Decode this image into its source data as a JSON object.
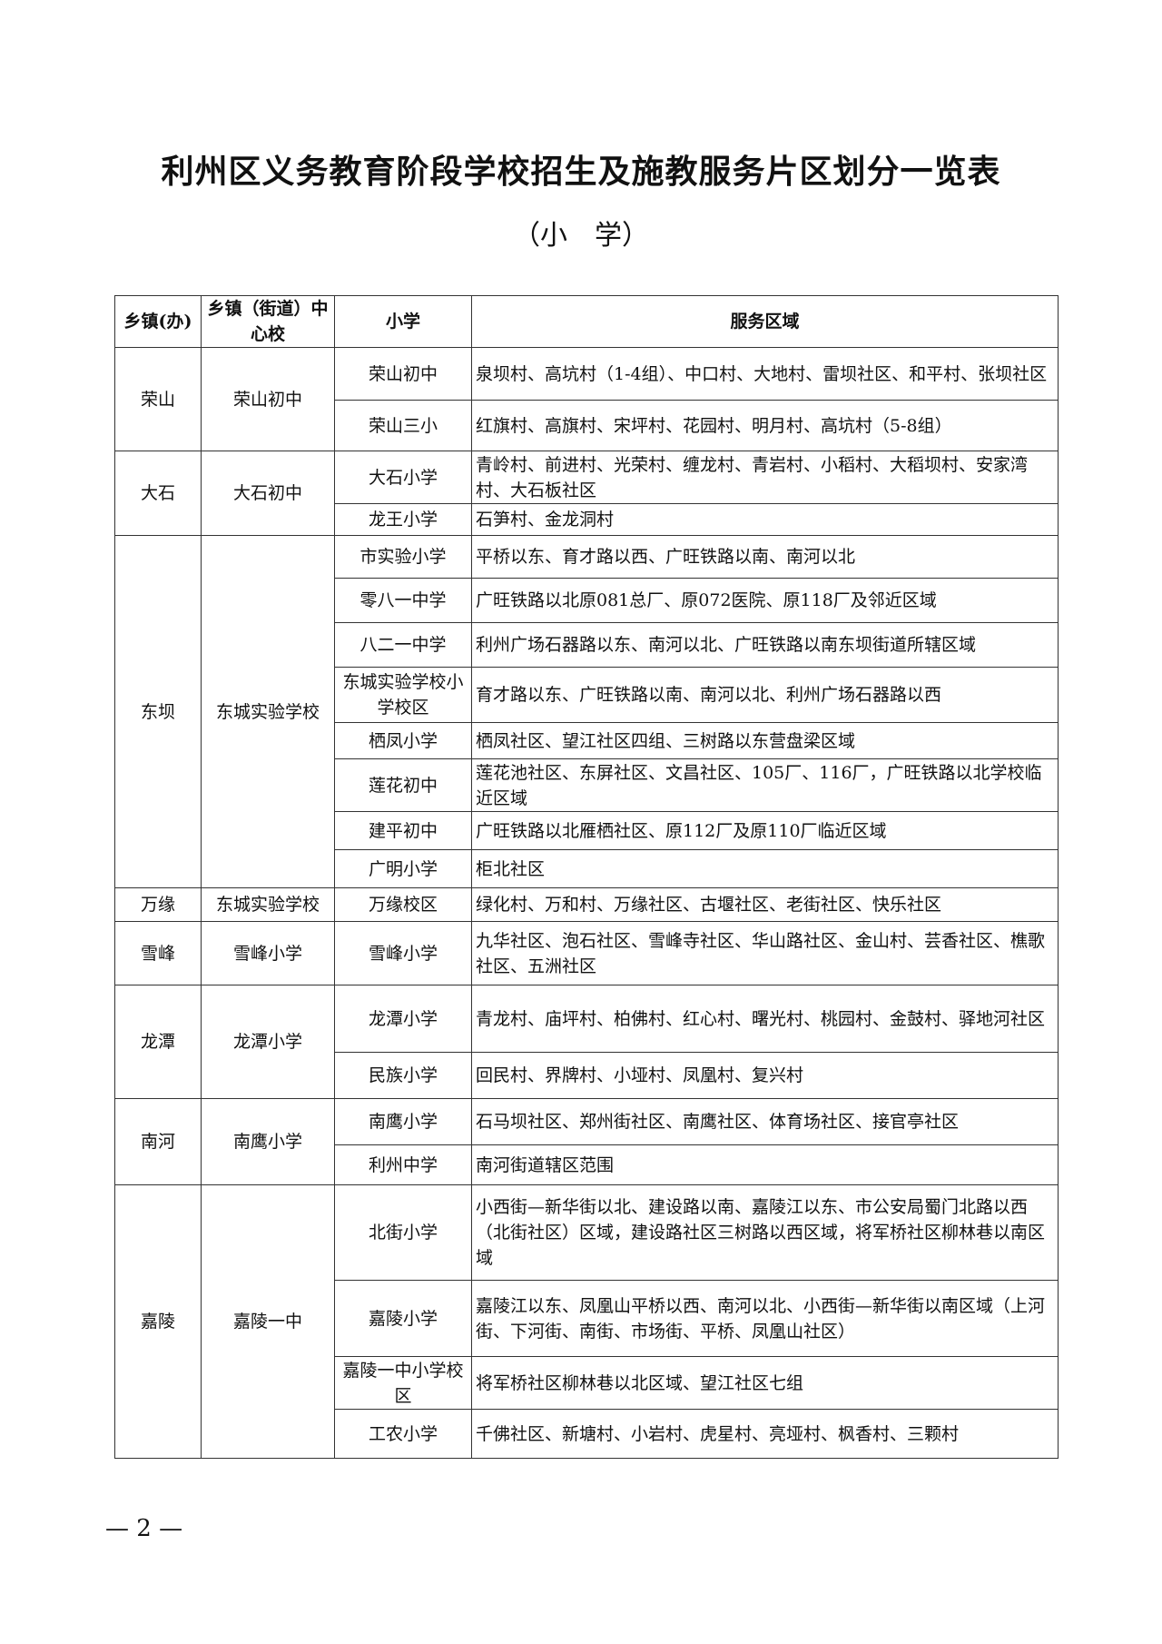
{
  "title": "利州区义务教育阶段学校招生及施教服务片区划分一览表",
  "subtitle": "（小　学）",
  "table": {
    "headers": [
      "乡镇(办)",
      "乡镇（街道）中心校",
      "小学",
      "服务区域"
    ],
    "groups": [
      {
        "town": "荣山",
        "center": "荣山初中",
        "schools": [
          {
            "name": "荣山初中",
            "area": "泉坝村、高坑村（1-4组）、中口村、大地村、雷坝社区、和平村、张坝社区"
          },
          {
            "name": "荣山三小",
            "area": "红旗村、高旗村、宋坪村、花园村、明月村、高坑村（5-8组）"
          }
        ]
      },
      {
        "town": "大石",
        "center": "大石初中",
        "schools": [
          {
            "name": "大石小学",
            "area": "青岭村、前进村、光荣村、缠龙村、青岩村、小稻村、大稻坝村、安家湾村、大石板社区"
          },
          {
            "name": "龙王小学",
            "area": "石笋村、金龙洞村"
          }
        ]
      },
      {
        "town": "东坝",
        "center": "东城实验学校",
        "schools": [
          {
            "name": "市实验小学",
            "area": "平桥以东、育才路以西、广旺铁路以南、南河以北"
          },
          {
            "name": "零八一中学",
            "area": "广旺铁路以北原081总厂、原072医院、原118厂及邻近区域"
          },
          {
            "name": "八二一中学",
            "area": "利州广场石器路以东、南河以北、广旺铁路以南东坝街道所辖区域"
          },
          {
            "name": "东城实验学校小学校区",
            "area": "育才路以东、广旺铁路以南、南河以北、利州广场石器路以西"
          },
          {
            "name": "栖凤小学",
            "area": "栖凤社区、望江社区四组、三树路以东营盘梁区域"
          },
          {
            "name": "莲花初中",
            "area": "莲花池社区、东屏社区、文昌社区、105厂、116厂，广旺铁路以北学校临近区域"
          },
          {
            "name": "建平初中",
            "area": "广旺铁路以北雁栖社区、原112厂及原110厂临近区域"
          },
          {
            "name": "广明小学",
            "area": "柜北社区"
          }
        ]
      },
      {
        "town": "万缘",
        "center": "东城实验学校",
        "schools": [
          {
            "name": "万缘校区",
            "area": "绿化村、万和村、万缘社区、古堰社区、老街社区、快乐社区"
          }
        ]
      },
      {
        "town": "雪峰",
        "center": "雪峰小学",
        "schools": [
          {
            "name": "雪峰小学",
            "area": "九华社区、泡石社区、雪峰寺社区、华山路社区、金山村、芸香社区、樵歌社区、五洲社区"
          }
        ]
      },
      {
        "town": "龙潭",
        "center": "龙潭小学",
        "schools": [
          {
            "name": "龙潭小学",
            "area": "青龙村、庙坪村、柏佛村、红心村、曙光村、桃园村、金鼓村、驿地河社区"
          },
          {
            "name": "民族小学",
            "area": "回民村、界牌村、小垭村、凤凰村、复兴村"
          }
        ]
      },
      {
        "town": "南河",
        "center": "南鹰小学",
        "schools": [
          {
            "name": "南鹰小学",
            "area": "石马坝社区、郑州街社区、南鹰社区、体育场社区、接官亭社区"
          },
          {
            "name": "利州中学",
            "area": "南河街道辖区范围"
          }
        ]
      },
      {
        "town": "嘉陵",
        "center": "嘉陵一中",
        "schools": [
          {
            "name": "北街小学",
            "area": "小西街—新华街以北、建设路以南、嘉陵江以东、市公安局蜀门北路以西（北街社区）区域，建设路社区三树路以西区域，将军桥社区柳林巷以南区域"
          },
          {
            "name": "嘉陵小学",
            "area": "嘉陵江以东、凤凰山平桥以西、南河以北、小西街—新华街以南区域（上河街、下河街、南街、市场街、平桥、凤凰山社区）"
          },
          {
            "name": "嘉陵一中小学校区",
            "area": "将军桥社区柳林巷以北区域、望江社区七组"
          },
          {
            "name": "工农小学",
            "area": "千佛社区、新塘村、小岩村、虎星村、亮垭村、枫香村、三颗村"
          }
        ]
      }
    ]
  },
  "page_number": "— 2 —"
}
